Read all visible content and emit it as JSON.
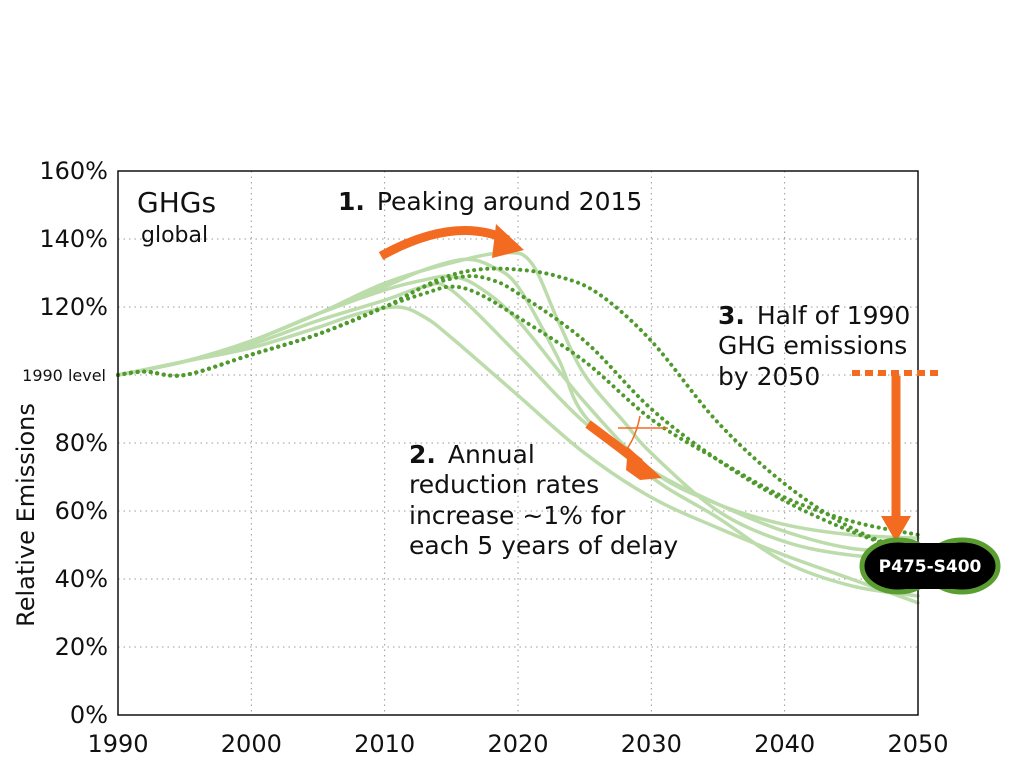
{
  "chart_data": {
    "type": "line",
    "title": "GHGs",
    "subtitle": "global",
    "ylabel": "Relative Emissions",
    "xlim": [
      1990,
      2050
    ],
    "ylim": [
      0,
      160
    ],
    "x_ticks": [
      1990,
      2000,
      2010,
      2020,
      2030,
      2040,
      2050
    ],
    "y_ticks": [
      {
        "value": 0,
        "label": "0%"
      },
      {
        "value": 20,
        "label": "20%"
      },
      {
        "value": 40,
        "label": "40%"
      },
      {
        "value": 60,
        "label": "60%"
      },
      {
        "value": 80,
        "label": "80%"
      },
      {
        "value": 100,
        "label": "1990 level"
      },
      {
        "value": 120,
        "label": "120%"
      },
      {
        "value": 140,
        "label": "140%"
      },
      {
        "value": 160,
        "label": "160%"
      }
    ],
    "grid": true,
    "colors": {
      "solid": "#bcdcab",
      "dotted": "#4f9a2c",
      "accent": "#f26b21",
      "badge_bg": "#000000",
      "badge_border": "#5a9e32"
    },
    "series": [
      {
        "style": "solid",
        "points": [
          [
            1990,
            100
          ],
          [
            1995,
            104
          ],
          [
            2000,
            108
          ],
          [
            2005,
            114
          ],
          [
            2008,
            118
          ],
          [
            2011,
            120
          ],
          [
            2013,
            117
          ],
          [
            2015,
            111
          ],
          [
            2020,
            94
          ],
          [
            2025,
            77
          ],
          [
            2030,
            64
          ],
          [
            2035,
            55
          ],
          [
            2040,
            47
          ],
          [
            2045,
            40
          ],
          [
            2050,
            33
          ]
        ]
      },
      {
        "style": "solid",
        "points": [
          [
            1990,
            100
          ],
          [
            1995,
            104
          ],
          [
            2000,
            109
          ],
          [
            2005,
            116
          ],
          [
            2010,
            122
          ],
          [
            2013,
            126
          ],
          [
            2015,
            125
          ],
          [
            2020,
            106
          ],
          [
            2025,
            86
          ],
          [
            2030,
            72
          ],
          [
            2035,
            62
          ],
          [
            2040,
            54
          ],
          [
            2045,
            49
          ],
          [
            2050,
            48
          ]
        ]
      },
      {
        "style": "solid",
        "points": [
          [
            1990,
            100
          ],
          [
            1995,
            104
          ],
          [
            2000,
            110
          ],
          [
            2005,
            118
          ],
          [
            2010,
            125
          ],
          [
            2013,
            128
          ],
          [
            2015,
            129
          ],
          [
            2017,
            126
          ],
          [
            2020,
            116
          ],
          [
            2025,
            92
          ],
          [
            2030,
            72
          ],
          [
            2035,
            62
          ],
          [
            2040,
            56
          ],
          [
            2045,
            53
          ],
          [
            2050,
            52
          ]
        ]
      },
      {
        "style": "solid",
        "points": [
          [
            1990,
            100
          ],
          [
            1995,
            104
          ],
          [
            2000,
            110
          ],
          [
            2005,
            118
          ],
          [
            2010,
            126
          ],
          [
            2013,
            131
          ],
          [
            2016,
            134
          ],
          [
            2018,
            132
          ],
          [
            2020,
            126
          ],
          [
            2023,
            105
          ],
          [
            2025,
            88
          ],
          [
            2030,
            70
          ],
          [
            2035,
            58
          ],
          [
            2040,
            45
          ],
          [
            2045,
            38
          ],
          [
            2050,
            35
          ]
        ]
      },
      {
        "style": "solid",
        "points": [
          [
            1990,
            100
          ],
          [
            1995,
            104
          ],
          [
            2000,
            110
          ],
          [
            2005,
            118
          ],
          [
            2010,
            127
          ],
          [
            2015,
            133
          ],
          [
            2019,
            136
          ],
          [
            2021,
            133
          ],
          [
            2023,
            116
          ],
          [
            2025,
            100
          ],
          [
            2028,
            86
          ],
          [
            2030,
            77
          ],
          [
            2035,
            60
          ],
          [
            2040,
            51
          ],
          [
            2045,
            47
          ],
          [
            2050,
            46
          ]
        ]
      },
      {
        "style": "dotted",
        "points": [
          [
            1990,
            100
          ],
          [
            1992,
            101
          ],
          [
            1995,
            100
          ],
          [
            2000,
            106
          ],
          [
            2005,
            112
          ],
          [
            2010,
            120
          ],
          [
            2013,
            124
          ],
          [
            2015,
            126
          ],
          [
            2017,
            124
          ],
          [
            2020,
            117
          ],
          [
            2025,
            104
          ],
          [
            2030,
            87
          ],
          [
            2035,
            75
          ],
          [
            2040,
            64
          ],
          [
            2045,
            57
          ],
          [
            2050,
            53
          ]
        ]
      },
      {
        "style": "dotted",
        "points": [
          [
            1990,
            100
          ],
          [
            1992,
            101
          ],
          [
            1995,
            100
          ],
          [
            2000,
            106
          ],
          [
            2005,
            112
          ],
          [
            2010,
            120
          ],
          [
            2013,
            126
          ],
          [
            2016,
            129
          ],
          [
            2018,
            128
          ],
          [
            2020,
            124
          ],
          [
            2025,
            110
          ],
          [
            2030,
            90
          ],
          [
            2035,
            75
          ],
          [
            2040,
            63
          ],
          [
            2045,
            54
          ],
          [
            2050,
            47
          ]
        ]
      },
      {
        "style": "dotted",
        "points": [
          [
            1990,
            100
          ],
          [
            1992,
            101
          ],
          [
            1995,
            100
          ],
          [
            2000,
            106
          ],
          [
            2005,
            112
          ],
          [
            2010,
            120
          ],
          [
            2014,
            128
          ],
          [
            2017,
            131
          ],
          [
            2020,
            131
          ],
          [
            2023,
            129
          ],
          [
            2026,
            124
          ],
          [
            2030,
            110
          ],
          [
            2035,
            86
          ],
          [
            2040,
            68
          ],
          [
            2045,
            55
          ],
          [
            2050,
            47
          ]
        ]
      }
    ],
    "annotations": {
      "peak_num": "1.",
      "peak_text": "Peaking around 2015",
      "rates_num": "2.",
      "rates_line1": "Annual",
      "rates_line2": "reduction rates",
      "rates_line3": "increase ~1% for",
      "rates_line4": "each 5 years of delay",
      "half_num": "3.",
      "half_line1": "Half of 1990",
      "half_line2": "GHG emissions",
      "half_line3": "by 2050",
      "badge": "P475-S400"
    }
  }
}
